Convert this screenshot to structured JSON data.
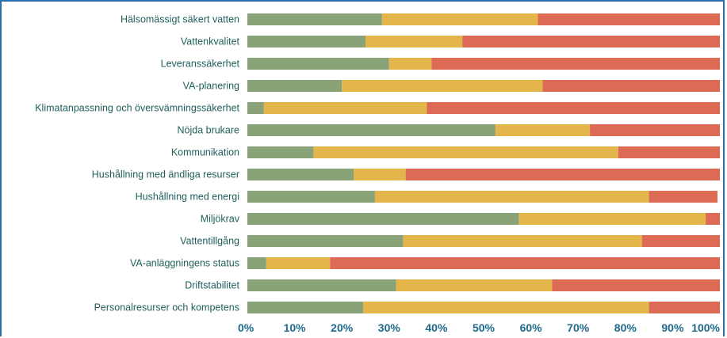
{
  "chart_data": {
    "type": "bar",
    "orientation": "horizontal",
    "stacked": true,
    "percent_stacked": true,
    "categories": [
      "Hälsomässigt säkert vatten",
      "Vattenkvalitet",
      "Leveranssäkerhet",
      "VA-planering",
      "Klimatanpassning och översvämningssäkerhet",
      "Nöjda brukare",
      "Kommunikation",
      "Hushållning med ändliga resurser",
      "Hushållning med energi",
      "Miljökrav",
      "Vattentillgång",
      "VA-anläggningens status",
      "Driftstabilitet",
      "Personalresurser och kompetens"
    ],
    "series": [
      {
        "color": "#8aa277",
        "values": [
          28.5,
          25,
          30,
          20,
          3.5,
          52.5,
          14,
          22.5,
          27,
          57.5,
          33,
          4,
          31.5,
          24.5
        ]
      },
      {
        "color": "#e3b54a",
        "values": [
          33,
          20.5,
          9,
          42.5,
          34.5,
          20,
          64.5,
          11,
          58,
          39.5,
          50.5,
          13.5,
          33,
          60.5
        ]
      },
      {
        "color": "#dc6a55",
        "values": [
          38.5,
          54.5,
          61,
          37.5,
          62,
          27.5,
          21.5,
          66.5,
          14.5,
          3,
          16.5,
          82.5,
          35.5,
          15
        ]
      }
    ],
    "x_ticks": [
      "0%",
      "10%",
      "20%",
      "30%",
      "40%",
      "50%",
      "60%",
      "70%",
      "80%",
      "90%",
      "100%"
    ],
    "xlim": [
      0,
      100
    ],
    "grid": false,
    "legend": "none"
  }
}
